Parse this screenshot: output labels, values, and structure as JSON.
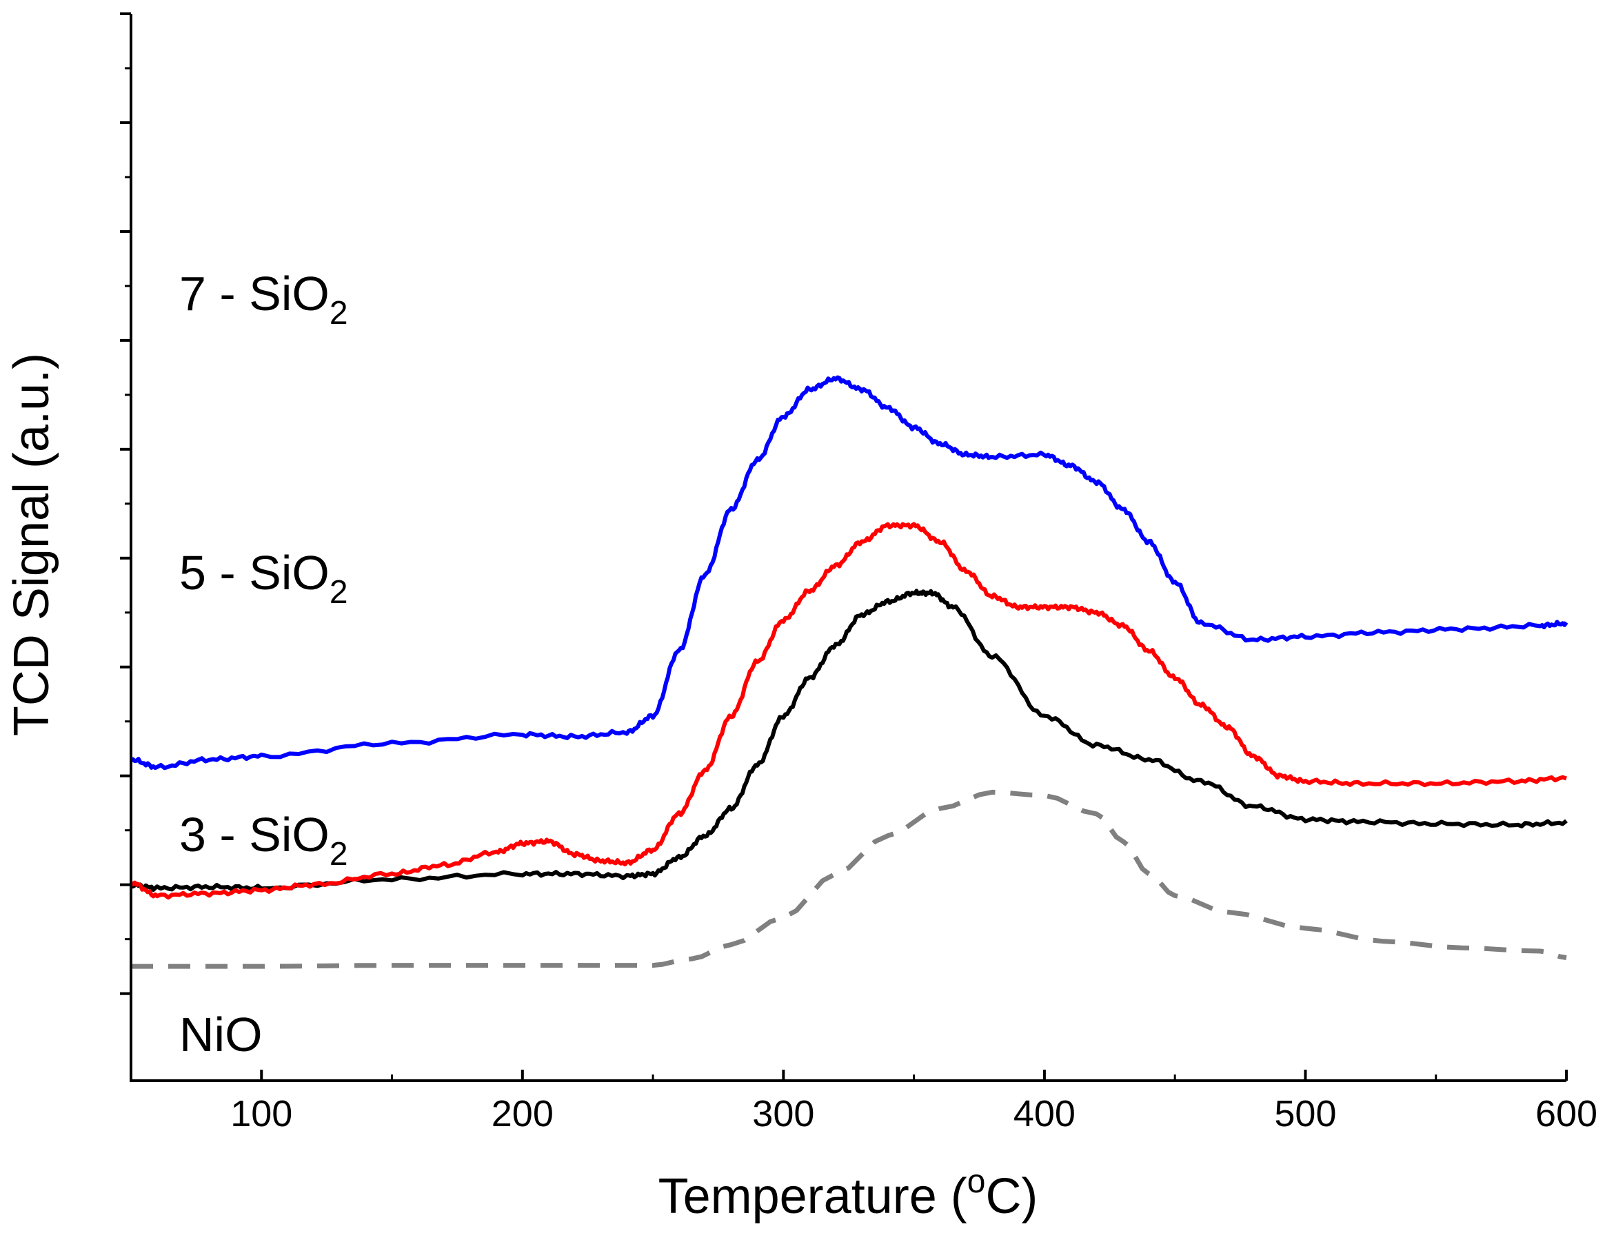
{
  "chart_data": {
    "type": "line",
    "xlabel": {
      "pre": "Temperature (",
      "sup": "o",
      "post": "C)"
    },
    "ylabel": "TCD Signal (a.u.)",
    "xlim": [
      50,
      600
    ],
    "ylim": [
      -1.8,
      8.0
    ],
    "x_ticks": [
      100,
      200,
      300,
      400,
      500,
      600
    ],
    "y_ticks_unlabeled": [
      0,
      1,
      2,
      3,
      4,
      5,
      6,
      7,
      8,
      -1
    ],
    "grid": false,
    "legend": "none",
    "series": [
      {
        "key": "nio",
        "label": {
          "main": "NiO",
          "sub": ""
        },
        "color": "#808080",
        "dashed": true,
        "x": [
          50,
          100,
          150,
          200,
          250,
          265,
          280,
          300,
          320,
          340,
          360,
          380,
          400,
          420,
          430,
          440,
          450,
          470,
          500,
          530,
          560,
          590,
          600
        ],
        "y": [
          -0.75,
          -0.75,
          -0.74,
          -0.74,
          -0.74,
          -0.68,
          -0.55,
          -0.3,
          0.1,
          0.45,
          0.7,
          0.85,
          0.82,
          0.65,
          0.4,
          0.1,
          -0.1,
          -0.25,
          -0.4,
          -0.52,
          -0.58,
          -0.61,
          -0.67
        ]
      },
      {
        "key": "s3",
        "label": {
          "main": "3 - SiO",
          "sub": "2"
        },
        "color": "#000000",
        "dashed": false,
        "x": [
          50,
          60,
          80,
          100,
          150,
          200,
          220,
          240,
          250,
          260,
          270,
          280,
          290,
          300,
          310,
          320,
          330,
          340,
          350,
          357,
          365,
          380,
          400,
          420,
          440,
          460,
          480,
          500,
          520,
          550,
          580,
          600
        ],
        "y": [
          0.0,
          -0.03,
          -0.02,
          -0.03,
          0.05,
          0.1,
          0.1,
          0.08,
          0.1,
          0.25,
          0.45,
          0.7,
          1.1,
          1.55,
          1.9,
          2.2,
          2.48,
          2.6,
          2.68,
          2.68,
          2.55,
          2.1,
          1.55,
          1.28,
          1.15,
          0.95,
          0.72,
          0.6,
          0.58,
          0.56,
          0.55,
          0.57
        ]
      },
      {
        "key": "s5",
        "label": {
          "main": "5 - SiO",
          "sub": "2"
        },
        "color": "#ff0000",
        "dashed": false,
        "x": [
          50,
          60,
          80,
          100,
          120,
          150,
          170,
          190,
          200,
          210,
          220,
          230,
          240,
          250,
          260,
          270,
          280,
          290,
          300,
          310,
          320,
          330,
          340,
          350,
          360,
          370,
          380,
          390,
          400,
          410,
          420,
          430,
          440,
          450,
          460,
          470,
          480,
          490,
          500,
          520,
          550,
          580,
          600
        ],
        "y": [
          0.02,
          -0.1,
          -0.08,
          -0.05,
          0.0,
          0.1,
          0.18,
          0.3,
          0.38,
          0.4,
          0.28,
          0.22,
          0.2,
          0.32,
          0.65,
          1.05,
          1.55,
          2.05,
          2.43,
          2.7,
          2.93,
          3.15,
          3.3,
          3.3,
          3.15,
          2.88,
          2.65,
          2.55,
          2.55,
          2.55,
          2.5,
          2.38,
          2.15,
          1.9,
          1.65,
          1.45,
          1.18,
          1.0,
          0.95,
          0.93,
          0.93,
          0.95,
          0.98
        ]
      },
      {
        "key": "s7",
        "label": {
          "main": "7 - SiO",
          "sub": "2"
        },
        "color": "#0000ff",
        "dashed": false,
        "x": [
          50,
          60,
          80,
          100,
          150,
          200,
          220,
          240,
          250,
          260,
          270,
          280,
          290,
          300,
          310,
          320,
          330,
          340,
          350,
          360,
          370,
          380,
          400,
          410,
          420,
          430,
          440,
          450,
          460,
          480,
          500,
          530,
          560,
          590,
          600
        ],
        "y": [
          1.15,
          1.08,
          1.15,
          1.18,
          1.3,
          1.38,
          1.36,
          1.4,
          1.55,
          2.15,
          2.85,
          3.45,
          3.9,
          4.3,
          4.55,
          4.65,
          4.55,
          4.38,
          4.2,
          4.05,
          3.95,
          3.93,
          3.95,
          3.85,
          3.7,
          3.45,
          3.15,
          2.78,
          2.4,
          2.25,
          2.28,
          2.32,
          2.35,
          2.38,
          2.4
        ]
      }
    ]
  }
}
